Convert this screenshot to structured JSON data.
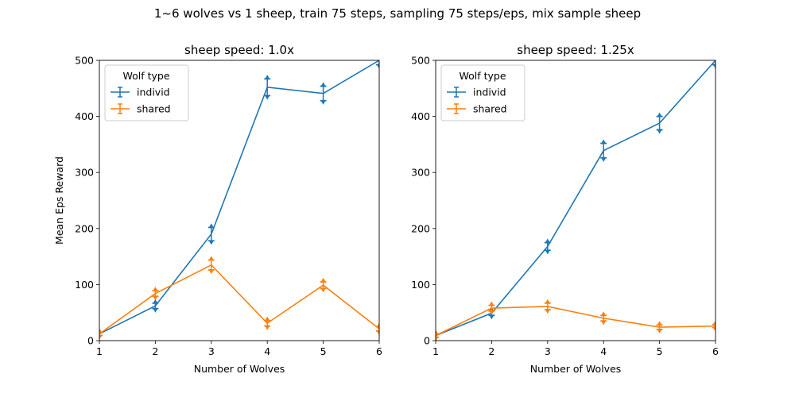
{
  "chart_data": {
    "suptitle": "1~6 wolves vs 1 sheep, train 75 steps, sampling 75 steps/eps, mix sample sheep",
    "panels": [
      {
        "type": "line",
        "title": "sheep speed: 1.0x",
        "xlabel": "Number of Wolves",
        "ylabel": "Mean Eps Reward",
        "xlim": [
          1,
          6
        ],
        "ylim": [
          0,
          500
        ],
        "xticks": [
          "1",
          "2",
          "3",
          "4",
          "5",
          "6"
        ],
        "yticks": [
          "0",
          "100",
          "200",
          "300",
          "400",
          "500"
        ],
        "legend": {
          "title": "Wolf type",
          "position": "upper-left"
        },
        "x": [
          1,
          2,
          3,
          4,
          5,
          6
        ],
        "series": [
          {
            "name": "individ",
            "color": "#1f77b4",
            "values": [
              12,
              62,
              190,
              452,
              441,
              500
            ],
            "err": [
              3,
              5,
              12,
              15,
              13,
              8
            ]
          },
          {
            "name": "shared",
            "color": "#ff7f0e",
            "values": [
              12,
              84,
              135,
              31,
              99,
              21
            ],
            "err": [
              3,
              5,
              9,
              5,
              6,
              4
            ]
          }
        ]
      },
      {
        "type": "line",
        "title": "sheep speed: 1.25x",
        "xlabel": "Number of Wolves",
        "ylabel": "",
        "xlim": [
          1,
          6
        ],
        "ylim": [
          0,
          500
        ],
        "xticks": [
          "1",
          "2",
          "3",
          "4",
          "5",
          "6"
        ],
        "yticks": [
          "0",
          "100",
          "200",
          "300",
          "400",
          "500"
        ],
        "legend": {
          "title": "Wolf type",
          "position": "upper-left"
        },
        "x": [
          1,
          2,
          3,
          4,
          5,
          6
        ],
        "series": [
          {
            "name": "individ",
            "color": "#1f77b4",
            "values": [
              9,
              49,
              168,
              339,
              388,
              500
            ],
            "err": [
              3,
              4,
              7,
              13,
              12,
              8
            ]
          },
          {
            "name": "shared",
            "color": "#ff7f0e",
            "values": [
              9,
              58,
              61,
              40,
              24,
              26
            ],
            "err": [
              3,
              5,
              6,
              5,
              4,
              3
            ]
          }
        ]
      }
    ]
  }
}
